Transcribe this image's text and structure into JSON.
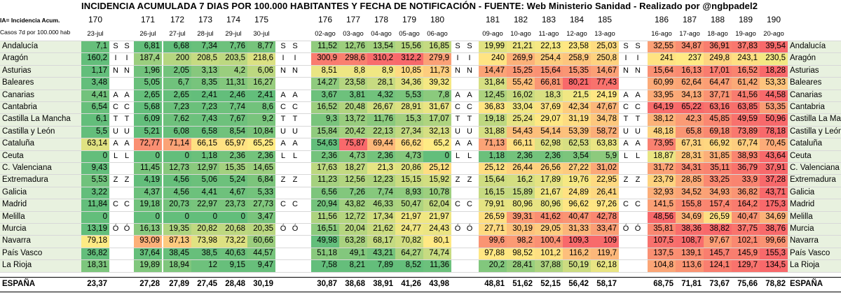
{
  "title": "INCIDENCIA ACUMULADA 7 DIAS POR 100.000 HABITANTES Y FECHA DE NOTIFICACIÓN - FUENTE: Web Ministerio Sanidad - Realizado por @ngbpadel2",
  "notes": {
    "line1": "IA= Incidencia Acum.",
    "line2": "Casos 7d  por 100.000 hab"
  },
  "colors": {
    "low": "#63be7b",
    "mid": "#ffeb84",
    "high": "#f8696b",
    "label_bg": "#e8f1df"
  },
  "chart_data": {
    "type": "table",
    "title": "INCIDENCIA ACUMULADA 7 DIAS POR 100.000 HABITANTES Y FECHA DE NOTIFICACIÓN",
    "color_scale": "green-yellow-red",
    "column_numbers": [
      "170",
      "171",
      "172",
      "173",
      "174",
      "175",
      "176",
      "177",
      "178",
      "179",
      "180",
      "181",
      "182",
      "183",
      "184",
      "185",
      "186",
      "187",
      "188",
      "189",
      "190"
    ],
    "dates": [
      "23-jul",
      "26-jul",
      "27-jul",
      "28-jul",
      "29-jul",
      "30-jul",
      "02-ago",
      "03-ago",
      "04-ago",
      "05-ago",
      "06-ago",
      "09-ago",
      "10-ago",
      "11-ago",
      "12-ago",
      "13-ago",
      "16-ago",
      "17-ago",
      "18-ago",
      "19-ago",
      "20-ago"
    ],
    "weekend_markers": [
      [
        "",
        ""
      ],
      [
        "",
        ""
      ],
      [
        "S",
        "S"
      ],
      [
        "I",
        "I"
      ],
      [
        "N",
        "N"
      ],
      [
        "",
        ""
      ],
      [
        "A",
        "A"
      ],
      [
        "C",
        "C"
      ],
      [
        "T",
        "T"
      ],
      [
        "U",
        "U"
      ],
      [
        "A",
        "A"
      ],
      [
        "L",
        "L"
      ],
      [
        "",
        ""
      ],
      [
        "Z",
        "Z"
      ],
      [
        "",
        ""
      ],
      [
        "C",
        "C"
      ],
      [
        "",
        ""
      ],
      [
        "Ó",
        "Ó"
      ],
      [
        "",
        ""
      ],
      [
        "",
        ""
      ],
      [
        "",
        ""
      ]
    ],
    "rows": [
      {
        "region": "Andalucía",
        "values": [
          "7,1",
          "6,81",
          "6,68",
          "7,34",
          "7,76",
          "8,77",
          "11,52",
          "12,76",
          "13,54",
          "15,56",
          "16,85",
          "19,99",
          "21,21",
          "22,13",
          "23,58",
          "25,03",
          "32,55",
          "34,87",
          "36,91",
          "37,83",
          "39,54"
        ]
      },
      {
        "region": "Aragón",
        "values": [
          "160,2",
          "187,4",
          "200",
          "208,5",
          "203,5",
          "218,6",
          "300,9",
          "298,6",
          "310,2",
          "312,2",
          "279,9",
          "240",
          "269,9",
          "254,4",
          "258,9",
          "250,8",
          "241",
          "237",
          "249,8",
          "243,1",
          "230,5"
        ]
      },
      {
        "region": "Asturias",
        "values": [
          "1,17",
          "1,96",
          "2,05",
          "3,13",
          "4,2",
          "6,06",
          "8,51",
          "8,8",
          "8,9",
          "10,85",
          "11,73",
          "14,47",
          "15,25",
          "15,64",
          "15,35",
          "14,67",
          "15,64",
          "16,13",
          "17,01",
          "16,52",
          "18,28"
        ]
      },
      {
        "region": "Baleares",
        "values": [
          "3,48",
          "5,05",
          "6,7",
          "8,35",
          "11,31",
          "16,27",
          "14,27",
          "23,58",
          "28,1",
          "34,36",
          "39,32",
          "31,84",
          "55,42",
          "66,81",
          "80,21",
          "77,43",
          "60,99",
          "62,64",
          "64,47",
          "61,42",
          "53,33"
        ]
      },
      {
        "region": "Canarias",
        "values": [
          "4,41",
          "2,65",
          "2,65",
          "2,41",
          "2,46",
          "2,41",
          "3,67",
          "3,81",
          "4,32",
          "5,53",
          "7,8",
          "12,45",
          "16,02",
          "18,3",
          "21,5",
          "24,19",
          "33,95",
          "34,13",
          "37,71",
          "41,56",
          "44,58"
        ]
      },
      {
        "region": "Cantabria",
        "values": [
          "6,54",
          "5,68",
          "7,23",
          "7,23",
          "7,74",
          "8,6",
          "16,52",
          "20,48",
          "26,67",
          "28,91",
          "31,67",
          "36,83",
          "33,04",
          "37,69",
          "42,34",
          "47,67",
          "64,19",
          "65,22",
          "63,16",
          "63,85",
          "53,35"
        ]
      },
      {
        "region": "Castilla La Mancha",
        "values": [
          "6,1",
          "6,09",
          "7,62",
          "7,43",
          "7,67",
          "9,2",
          "9,3",
          "13,72",
          "11,76",
          "15,3",
          "17,07",
          "19,18",
          "25,24",
          "29,07",
          "31,19",
          "34,78",
          "38,12",
          "42,3",
          "45,85",
          "49,59",
          "50,96"
        ]
      },
      {
        "region": "Castilla y León",
        "values": [
          "5,5",
          "5,21",
          "6,08",
          "6,58",
          "8,54",
          "10,84",
          "15,84",
          "20,42",
          "22,13",
          "27,34",
          "32,13",
          "31,88",
          "54,43",
          "54,14",
          "53,39",
          "58,72",
          "48,18",
          "65,8",
          "69,18",
          "73,89",
          "78,18"
        ]
      },
      {
        "region": "Cataluña",
        "values": [
          "63,14",
          "72,77",
          "71,14",
          "66,15",
          "65,97",
          "65,25",
          "54,63",
          "75,87",
          "69,44",
          "66,62",
          "65,2",
          "71,13",
          "66,11",
          "62,98",
          "62,53",
          "63,83",
          "73,95",
          "67,31",
          "66,92",
          "67,74",
          "70,45"
        ]
      },
      {
        "region": "Ceuta",
        "values": [
          "0",
          "0",
          "0",
          "1,18",
          "2,36",
          "2,36",
          "2,36",
          "4,73",
          "2,36",
          "4,73",
          "0",
          "1,18",
          "2,36",
          "2,36",
          "3,54",
          "5,9",
          "18,87",
          "28,31",
          "31,85",
          "38,93",
          "43,64"
        ]
      },
      {
        "region": "C. Valenciana",
        "values": [
          "9,43",
          "11,45",
          "12,73",
          "12,97",
          "15,35",
          "14,65",
          "17,63",
          "18,27",
          "21,3",
          "20,86",
          "25,12",
          "25,12",
          "26,44",
          "26,56",
          "27,22",
          "31,02",
          "31,72",
          "34,31",
          "35,11",
          "36,79",
          "37,91"
        ]
      },
      {
        "region": "Extremadura",
        "values": [
          "5,53",
          "4,19",
          "4,56",
          "5,06",
          "5,24",
          "6,84",
          "11,23",
          "12,56",
          "12,23",
          "15,15",
          "15,92",
          "15,64",
          "16,2",
          "17,89",
          "19,76",
          "22,95",
          "23,79",
          "28,85",
          "33,25",
          "33,9",
          "37,28"
        ]
      },
      {
        "region": "Galicia",
        "values": [
          "3,22",
          "4,37",
          "4,56",
          "4,41",
          "4,67",
          "5,33",
          "6,56",
          "7,26",
          "7,74",
          "8,93",
          "10,78",
          "16,15",
          "15,89",
          "21,67",
          "24,89",
          "26,41",
          "32,93",
          "34,52",
          "34,93",
          "36,82",
          "43,71"
        ]
      },
      {
        "region": "Madrid",
        "values": [
          "11,84",
          "19,18",
          "20,73",
          "22,97",
          "23,73",
          "27,73",
          "20,94",
          "43,82",
          "46,33",
          "50,47",
          "62,04",
          "79,91",
          "80,96",
          "80,96",
          "96,62",
          "97,26",
          "141,5",
          "155,8",
          "157,4",
          "164,2",
          "175,3"
        ]
      },
      {
        "region": "Melilla",
        "values": [
          "0",
          "0",
          "0",
          "0",
          "0",
          "3,47",
          "11,56",
          "12,72",
          "17,34",
          "21,97",
          "21,97",
          "26,59",
          "39,31",
          "41,62",
          "40,47",
          "42,78",
          "48,56",
          "34,69",
          "26,59",
          "40,47",
          "34,69"
        ]
      },
      {
        "region": "Murcia",
        "values": [
          "13,19",
          "16,13",
          "19,35",
          "20,82",
          "20,68",
          "20,35",
          "16,51",
          "20,04",
          "21,62",
          "24,77",
          "24,43",
          "27,71",
          "30,19",
          "29,05",
          "31,33",
          "33,47",
          "35,81",
          "38,36",
          "38,82",
          "37,75",
          "38,76"
        ]
      },
      {
        "region": "Navarra",
        "values": [
          "79,18",
          "93,09",
          "87,13",
          "73,98",
          "73,22",
          "60,66",
          "49,98",
          "63,28",
          "68,17",
          "70,82",
          "80,1",
          "99,6",
          "98,2",
          "100,4",
          "109,3",
          "109",
          "107,5",
          "108,7",
          "97,67",
          "102,1",
          "99,66"
        ]
      },
      {
        "region": "País Vasco",
        "values": [
          "36,82",
          "37,64",
          "38,45",
          "38,5",
          "40,63",
          "44,57",
          "51,18",
          "49,1",
          "43,21",
          "64,27",
          "74,74",
          "97,88",
          "98,52",
          "101,2",
          "116,2",
          "119,7",
          "137,5",
          "139,1",
          "145,7",
          "145,9",
          "155,3"
        ]
      },
      {
        "region": "La Rioja",
        "values": [
          "18,31",
          "19,89",
          "18,94",
          "12",
          "9,15",
          "9,47",
          "7,58",
          "8,21",
          "7,89",
          "8,52",
          "11,36",
          "20,2",
          "28,41",
          "37,88",
          "50,19",
          "62,18",
          "104,8",
          "113,6",
          "124,1",
          "129,7",
          "134,5"
        ]
      }
    ],
    "total": {
      "region": "ESPAÑA",
      "values": [
        "23,37",
        "27,28",
        "27,89",
        "27,45",
        "28,48",
        "30,19",
        "30,87",
        "38,68",
        "38,91",
        "41,26",
        "43,98",
        "48,81",
        "51,62",
        "52,15",
        "56,42",
        "58,17",
        "68,75",
        "71,81",
        "73,67",
        "75,66",
        "78,82"
      ]
    }
  }
}
